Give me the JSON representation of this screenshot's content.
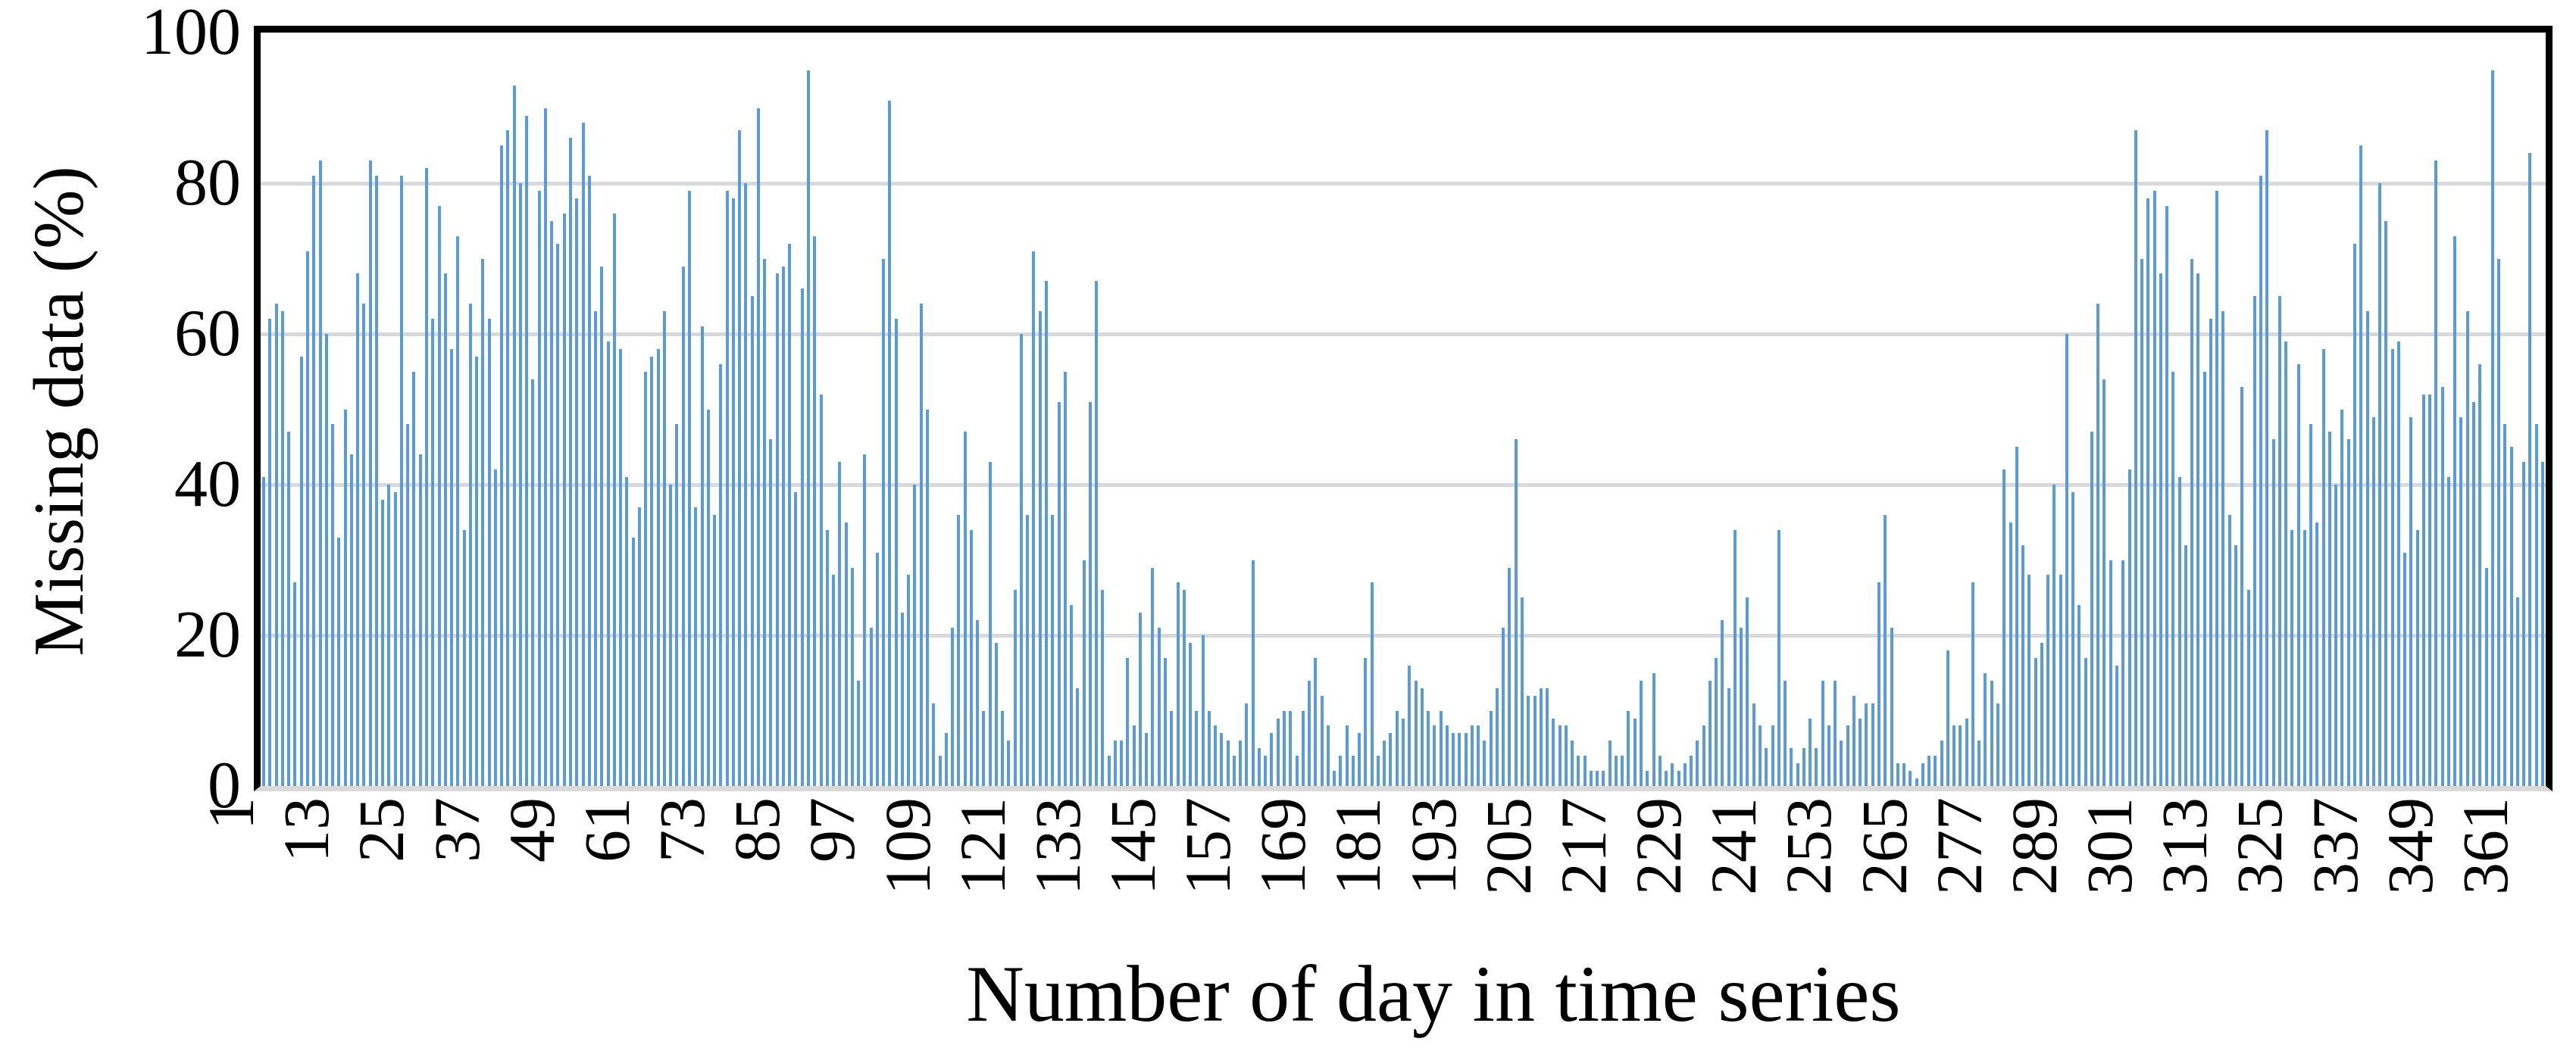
{
  "chart_data": {
    "type": "bar",
    "title": "",
    "xlabel": "Number of day in time series",
    "ylabel": "Missing data (%)",
    "ylim": [
      0,
      100
    ],
    "yticks": [
      0,
      20,
      40,
      60,
      80,
      100
    ],
    "x_tick_labels": [
      1,
      13,
      25,
      37,
      49,
      61,
      73,
      85,
      97,
      109,
      121,
      133,
      145,
      157,
      169,
      181,
      193,
      205,
      217,
      229,
      241,
      253,
      265,
      277,
      289,
      301,
      313,
      325,
      337,
      349,
      361
    ],
    "x_tick_step": 12,
    "n_days": 365,
    "legend": "none",
    "grid": "horizontal",
    "bar_color": "#5b9bd5",
    "gridline_color": "#d9d9d9",
    "axis_band_color": "#d9d9d9",
    "frame_color": "#000000",
    "values": [
      41,
      62,
      64,
      63,
      47,
      27,
      57,
      71,
      81,
      83,
      60,
      48,
      33,
      50,
      44,
      68,
      64,
      83,
      81,
      38,
      40,
      39,
      81,
      48,
      55,
      44,
      82,
      62,
      77,
      68,
      58,
      73,
      34,
      64,
      57,
      70,
      62,
      42,
      85,
      87,
      93,
      80,
      89,
      54,
      79,
      90,
      75,
      72,
      76,
      86,
      78,
      88,
      81,
      63,
      69,
      59,
      76,
      58,
      41,
      33,
      37,
      55,
      57,
      58,
      63,
      40,
      48,
      69,
      79,
      37,
      61,
      50,
      36,
      56,
      79,
      78,
      87,
      80,
      65,
      90,
      70,
      46,
      68,
      69,
      72,
      39,
      66,
      95,
      73,
      52,
      34,
      28,
      43,
      35,
      29,
      14,
      44,
      21,
      31,
      70,
      91,
      62,
      23,
      28,
      40,
      64,
      50,
      11,
      4,
      7,
      21,
      36,
      47,
      34,
      22,
      10,
      43,
      19,
      10,
      6,
      26,
      60,
      36,
      71,
      63,
      67,
      36,
      51,
      55,
      24,
      13,
      30,
      51,
      67,
      26,
      4,
      6,
      6,
      17,
      8,
      23,
      7,
      29,
      21,
      17,
      10,
      27,
      26,
      19,
      10,
      20,
      10,
      8,
      7,
      6,
      4,
      6,
      11,
      30,
      5,
      4,
      7,
      9,
      10,
      10,
      4,
      10,
      14,
      17,
      12,
      8,
      2,
      4,
      8,
      4,
      7,
      17,
      27,
      4,
      6,
      7,
      10,
      9,
      16,
      14,
      13,
      10,
      8,
      10,
      8,
      7,
      7,
      7,
      8,
      8,
      6,
      10,
      13,
      21,
      29,
      46,
      25,
      12,
      12,
      13,
      13,
      9,
      8,
      8,
      6,
      4,
      4,
      2,
      2,
      2,
      6,
      4,
      4,
      10,
      9,
      14,
      2,
      15,
      4,
      2,
      3,
      2,
      3,
      4,
      6,
      8,
      14,
      17,
      22,
      13,
      34,
      21,
      25,
      11,
      8,
      5,
      8,
      34,
      14,
      5,
      3,
      5,
      9,
      5,
      14,
      8,
      14,
      6,
      8,
      12,
      9,
      11,
      11,
      27,
      36,
      21,
      3,
      3,
      2,
      1,
      3,
      4,
      4,
      6,
      18,
      8,
      8,
      9,
      27,
      6,
      15,
      14,
      11,
      42,
      35,
      45,
      32,
      28,
      17,
      19,
      28,
      40,
      28,
      60,
      39,
      24,
      17,
      47,
      64,
      54,
      30,
      16,
      30,
      42,
      87,
      70,
      78,
      79,
      68,
      77,
      55,
      41,
      32,
      70,
      68,
      55,
      62,
      79,
      63,
      36,
      32,
      53,
      26,
      65,
      81,
      87,
      46,
      65,
      59,
      34,
      56,
      34,
      48,
      35,
      58,
      47,
      40,
      50,
      46,
      72,
      85,
      63,
      49,
      80,
      75,
      58,
      59,
      31,
      49,
      34,
      52,
      52,
      83,
      53,
      41,
      73,
      49,
      63,
      51,
      56,
      29,
      95,
      70,
      48,
      45,
      25,
      43,
      84,
      48,
      43
    ]
  }
}
